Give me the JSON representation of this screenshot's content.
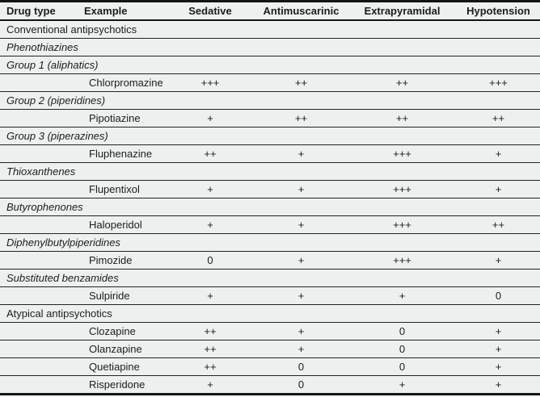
{
  "table": {
    "columns": [
      {
        "label": "Drug type",
        "align": "left"
      },
      {
        "label": "Example",
        "align": "left"
      },
      {
        "label": "Sedative",
        "align": "center"
      },
      {
        "label": "Antimuscarinic",
        "align": "center"
      },
      {
        "label": "Extrapyramidal",
        "align": "center"
      },
      {
        "label": "Hypotension",
        "align": "center"
      }
    ],
    "rows": [
      {
        "type": "section",
        "label": "Conventional antipsychotics"
      },
      {
        "type": "group",
        "label": "Phenothiazines"
      },
      {
        "type": "group",
        "label": "Group 1 (aliphatics)"
      },
      {
        "type": "drug",
        "example": "Chlorpromazine",
        "sedative": "+++",
        "antimuscarinic": "++",
        "extrapyramidal": "++",
        "hypotension": "+++"
      },
      {
        "type": "group",
        "label": "Group 2 (piperidines)"
      },
      {
        "type": "drug",
        "example": "Pipotiazine",
        "sedative": "+",
        "antimuscarinic": "++",
        "extrapyramidal": "++",
        "hypotension": "++"
      },
      {
        "type": "group",
        "label": "Group 3 (piperazines)"
      },
      {
        "type": "drug",
        "example": "Fluphenazine",
        "sedative": "++",
        "antimuscarinic": "+",
        "extrapyramidal": "+++",
        "hypotension": "+"
      },
      {
        "type": "group",
        "label": "Thioxanthenes"
      },
      {
        "type": "drug",
        "example": "Flupentixol",
        "sedative": "+",
        "antimuscarinic": "+",
        "extrapyramidal": "+++",
        "hypotension": "+"
      },
      {
        "type": "group",
        "label": "Butyrophenones"
      },
      {
        "type": "drug",
        "example": "Haloperidol",
        "sedative": "+",
        "antimuscarinic": "+",
        "extrapyramidal": "+++",
        "hypotension": "++"
      },
      {
        "type": "group",
        "label": "Diphenylbutylpiperidines"
      },
      {
        "type": "drug",
        "example": "Pimozide",
        "sedative": "0",
        "antimuscarinic": "+",
        "extrapyramidal": "+++",
        "hypotension": "+"
      },
      {
        "type": "group",
        "label": "Substituted benzamides"
      },
      {
        "type": "drug",
        "example": "Sulpiride",
        "sedative": "+",
        "antimuscarinic": "+",
        "extrapyramidal": "+",
        "hypotension": "0"
      },
      {
        "type": "section",
        "label": "Atypical antipsychotics"
      },
      {
        "type": "drug",
        "example": "Clozapine",
        "sedative": "++",
        "antimuscarinic": "+",
        "extrapyramidal": "0",
        "hypotension": "+"
      },
      {
        "type": "drug",
        "example": "Olanzapine",
        "sedative": "++",
        "antimuscarinic": "+",
        "extrapyramidal": "0",
        "hypotension": "+"
      },
      {
        "type": "drug",
        "example": "Quetiapine",
        "sedative": "++",
        "antimuscarinic": "0",
        "extrapyramidal": "0",
        "hypotension": "+"
      },
      {
        "type": "drug",
        "example": "Risperidone",
        "sedative": "+",
        "antimuscarinic": "0",
        "extrapyramidal": "+",
        "hypotension": "+"
      }
    ]
  },
  "colors": {
    "table_background": "#ecf1ef",
    "rule_lines": "#141414",
    "text": "#1c1c1c"
  }
}
